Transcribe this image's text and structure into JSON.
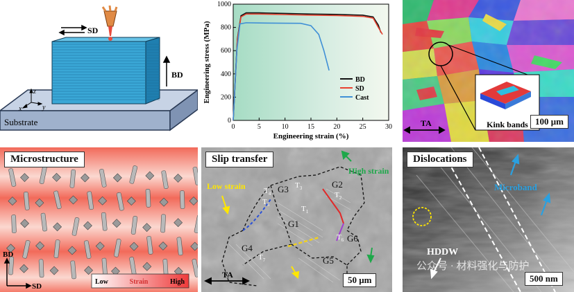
{
  "panel_a": {
    "labels": {
      "sd": "SD",
      "bd": "BD",
      "substrate": "Substrate",
      "axis_x": "x",
      "axis_y": "y",
      "axis_z": "z"
    }
  },
  "panel_b": {
    "chart_data": {
      "type": "line",
      "title": "",
      "xlabel": "Engineering strain (%)",
      "ylabel": "Engineering stress (MPa)",
      "xlim": [
        0,
        30
      ],
      "ylim": [
        0,
        1000
      ],
      "xticks": [
        0,
        5,
        10,
        15,
        20,
        25,
        30
      ],
      "yticks": [
        0,
        200,
        400,
        600,
        800,
        1000
      ],
      "legend_position": "center-right",
      "series": [
        {
          "name": "BD",
          "color": "#111111",
          "x": [
            0,
            0.8,
            1.5,
            2.5,
            5,
            10,
            15,
            20,
            25,
            27,
            28,
            28.5
          ],
          "y": [
            0,
            700,
            900,
            925,
            925,
            920,
            915,
            912,
            905,
            890,
            820,
            755
          ]
        },
        {
          "name": "SD",
          "color": "#e8412f",
          "x": [
            0,
            0.8,
            1.5,
            2.5,
            5,
            10,
            15,
            20,
            25,
            27,
            28,
            28.8
          ],
          "y": [
            0,
            690,
            890,
            915,
            915,
            910,
            905,
            902,
            895,
            880,
            800,
            740
          ]
        },
        {
          "name": "Cast",
          "color": "#3f8fd6",
          "x": [
            0,
            0.7,
            1.3,
            2.5,
            5,
            10,
            13,
            15,
            16.5,
            17.5,
            18.5
          ],
          "y": [
            0,
            600,
            830,
            840,
            838,
            836,
            835,
            815,
            740,
            600,
            430
          ]
        }
      ]
    }
  },
  "panel_c": {
    "labels": {
      "ta": "TA",
      "kink": "Kink bands",
      "scale": "100 μm"
    }
  },
  "panel_d": {
    "title": "Microstructure",
    "axis_bd": "BD",
    "axis_sd": "SD",
    "legend": {
      "low": "Low",
      "title": "Strain",
      "high": "High"
    }
  },
  "panel_e": {
    "title": "Slip transfer",
    "low_strain": "Low strain",
    "high_strain": "High strain",
    "grains": {
      "g1": "G1",
      "g2": "G2",
      "g3": "G3",
      "g4": "G4",
      "g5": "G5",
      "g6": "G6"
    },
    "twins": {
      "t1": "T",
      "t2": "T",
      "t3": "T",
      "t4": "T",
      "t5": "T",
      "t6": "T",
      "t7": "T",
      "s1": "1",
      "s2": "2",
      "s3": "3",
      "s4": "4",
      "s5": "5",
      "s6": "6",
      "s7": "7"
    },
    "ta": "TA",
    "scale": "50 μm"
  },
  "panel_f": {
    "title": "Dislocations",
    "microband": "Microband",
    "hddw": "HDDW",
    "scale": "500 nm",
    "watermark": "公众号 · 材料强化与防护"
  }
}
